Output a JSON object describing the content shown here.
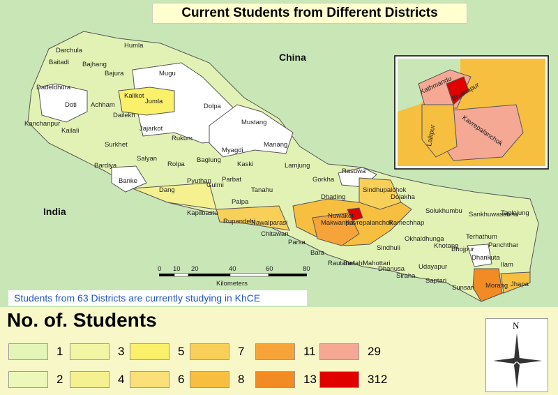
{
  "title": "Current Students from Different Districts",
  "countries": {
    "china": "China",
    "india": "India"
  },
  "note": "Students from 63 Districts are currently studying in KhCE",
  "scale": {
    "ticks": [
      "0",
      "10",
      "20",
      "40",
      "60",
      "80"
    ],
    "unit": "Kilometers"
  },
  "legend": {
    "title": "No. of. Students",
    "items": [
      {
        "value": "1",
        "color": "#e3f5b7"
      },
      {
        "value": "2",
        "color": "#ecf7ba"
      },
      {
        "value": "3",
        "color": "#f2f6a4"
      },
      {
        "value": "4",
        "color": "#f6f190"
      },
      {
        "value": "5",
        "color": "#fbf06a"
      },
      {
        "value": "6",
        "color": "#fbe07a"
      },
      {
        "value": "7",
        "color": "#f8cf58"
      },
      {
        "value": "8",
        "color": "#f7bf40"
      },
      {
        "value": "11",
        "color": "#f6a43a"
      },
      {
        "value": "13",
        "color": "#f38b25"
      },
      {
        "value": "29",
        "color": "#f5a894"
      },
      {
        "value": "312",
        "color": "#e00000"
      }
    ]
  },
  "north_label": "N",
  "inset": {
    "districts": [
      "Kathmandu",
      "Bhaktapur",
      "Lalitpur",
      "Kavrepalanchok"
    ]
  },
  "districts": [
    "Darchula",
    "Humla",
    "Bajhang",
    "Bajura",
    "Baitadi",
    "Dadeldhura",
    "Doti",
    "Achham",
    "Mugu",
    "Kalikot",
    "Jumla",
    "Dolpa",
    "Kanchanpur",
    "Kailali",
    "Dailekh",
    "Jajarkot",
    "Surkhet",
    "Rukum",
    "Mustang",
    "Myagdi",
    "Manang",
    "Bardiya",
    "Salyan",
    "Rolpa",
    "Baglung",
    "Kaski",
    "Lamjung",
    "Gorkha",
    "Rasuwa",
    "Banke",
    "Dang",
    "Pyuthan",
    "Gulmi",
    "Parbat",
    "Tanahu",
    "Dhading",
    "Nuwakot",
    "Sindhupalchok",
    "Dolakha",
    "Solukhumbu",
    "Sankhuwasabha",
    "Taplejung",
    "Kapilbastu",
    "Rupandehi",
    "Palpa",
    "Nawalparasi",
    "Chitawan",
    "Makwanpur",
    "Kavrepalanchok",
    "Ramechhap",
    "Okhaldhunga",
    "Khotang",
    "Bhojpur",
    "Terhathum",
    "Panchthar",
    "Ilam",
    "Dhankuta",
    "Parsa",
    "Bara",
    "Rautahat",
    "Sarlahi",
    "Mahottari",
    "Sindhuli",
    "Dhanusa",
    "Siraha",
    "Udayapur",
    "Saptari",
    "Sunsari",
    "Morang",
    "Jhapa"
  ]
}
